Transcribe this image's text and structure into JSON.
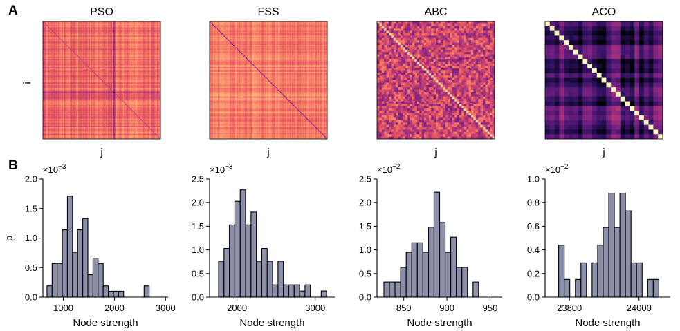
{
  "panel_labels": {
    "a": "A",
    "b": "B"
  },
  "colormap": [
    "#000004",
    "#2c115f",
    "#721f81",
    "#b73779",
    "#f1605d",
    "#feb078",
    "#fcfdbf"
  ],
  "bar_fill": "#8c8fa8",
  "chart_data": [
    {
      "type": "heatmap",
      "title": "PSO",
      "xlabel": "j",
      "ylabel": "i",
      "size": 100,
      "style": "pso"
    },
    {
      "type": "heatmap",
      "title": "FSS",
      "xlabel": "j",
      "ylabel": "",
      "size": 100,
      "style": "fss"
    },
    {
      "type": "heatmap",
      "title": "ABC",
      "xlabel": "j",
      "ylabel": "",
      "size": 50,
      "style": "abc"
    },
    {
      "type": "heatmap",
      "title": "ACO",
      "xlabel": "j",
      "ylabel": "",
      "size": 25,
      "style": "aco"
    },
    {
      "type": "bar",
      "xlabel": "Node strength",
      "ylabel": "p",
      "exponent_text": "×10",
      "exponent": "−3",
      "xlim": [
        600,
        3050
      ],
      "ylim": [
        0,
        2.0
      ],
      "xticks": [
        1000,
        2000,
        3000
      ],
      "xtick_labels": [
        "1000",
        "2000",
        "3000"
      ],
      "yticks": [
        0,
        0.5,
        1.0,
        1.5,
        2.0
      ],
      "ytick_labels": [
        "0.0",
        "0.5",
        "1.0",
        "1.5",
        "2.0"
      ],
      "bin_start": 680,
      "bin_width": 100,
      "values": [
        0.19,
        0.57,
        0.57,
        1.14,
        1.71,
        0.76,
        1.14,
        1.33,
        0.38,
        0.66,
        0.57,
        0.19,
        0.1,
        0.1,
        0.1,
        0.0,
        0.0,
        0.0,
        0.0,
        0.19
      ]
    },
    {
      "type": "bar",
      "xlabel": "Node strength",
      "ylabel": "",
      "exponent_text": "×10",
      "exponent": "−3",
      "xlim": [
        1650,
        3250
      ],
      "ylim": [
        0,
        2.5
      ],
      "xticks": [
        2000,
        3000
      ],
      "xtick_labels": [
        "2000",
        "3000"
      ],
      "yticks": [
        0,
        0.5,
        1.0,
        1.5,
        2.0,
        2.5
      ],
      "ytick_labels": [
        "0.0",
        "0.5",
        "1.0",
        "1.5",
        "2.0",
        "2.5"
      ],
      "bin_start": 1765,
      "bin_width": 69,
      "values": [
        0.76,
        1.03,
        1.53,
        2.03,
        2.27,
        1.53,
        1.8,
        0.76,
        1.03,
        0.76,
        0.26,
        0.76,
        0.26,
        0.26,
        0.26,
        0.13,
        0.26,
        0.0,
        0.0,
        0.13
      ]
    },
    {
      "type": "bar",
      "xlabel": "Node strength",
      "ylabel": "",
      "exponent_text": "×10",
      "exponent": "−2",
      "xlim": [
        819,
        964
      ],
      "ylim": [
        0,
        2.5
      ],
      "xticks": [
        850,
        900,
        950
      ],
      "xtick_labels": [
        "850",
        "900",
        "950"
      ],
      "yticks": [
        0,
        0.5,
        1.0,
        1.5,
        2.0,
        2.5
      ],
      "ytick_labels": [
        "0.0",
        "0.5",
        "1.0",
        "1.5",
        "2.0",
        "2.5"
      ],
      "bin_start": 827,
      "bin_width": 6.45,
      "values": [
        0.32,
        0.32,
        0.32,
        0.63,
        0.95,
        1.15,
        1.15,
        0.95,
        1.48,
        2.22,
        1.58,
        0.95,
        1.27,
        0.63,
        0.63,
        0.0,
        0.32
      ]
    },
    {
      "type": "bar",
      "xlabel": "Node strength",
      "ylabel": "",
      "exponent_text": "×10",
      "exponent": "−2",
      "xlim": [
        23730,
        24090
      ],
      "ylim": [
        0,
        1.0
      ],
      "xticks": [
        23800,
        24000
      ],
      "xtick_labels": [
        "23800",
        "24000"
      ],
      "yticks": [
        0,
        0.2,
        0.4,
        0.6,
        0.8,
        1.0
      ],
      "ytick_labels": [
        "0.0",
        "0.2",
        "0.4",
        "0.6",
        "0.8",
        "1.0"
      ],
      "bin_start": 23769,
      "bin_width": 16,
      "values": [
        0.44,
        0.15,
        0.0,
        0.15,
        0.29,
        0.0,
        0.29,
        0.44,
        0.59,
        0.88,
        0.59,
        0.88,
        0.73,
        0.29,
        0.29,
        0.0,
        0.15,
        0.15
      ]
    }
  ]
}
